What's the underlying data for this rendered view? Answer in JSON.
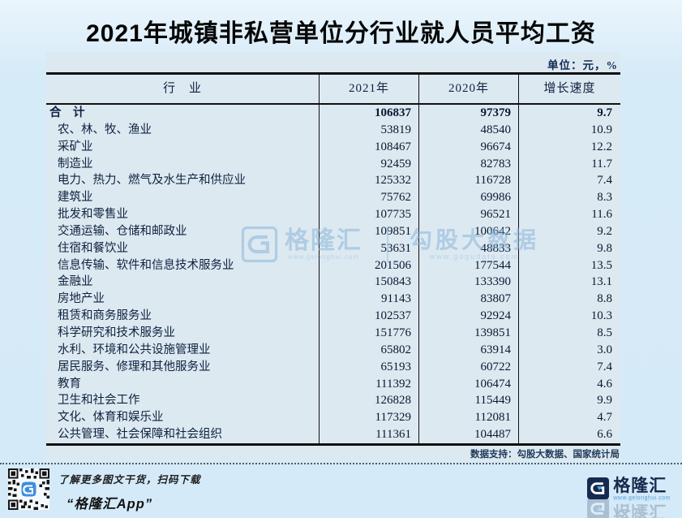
{
  "page": {
    "title": "2021年城镇非私营单位分行业就人员平均工资"
  },
  "table": {
    "unit_note": "单位：元，%",
    "source_note": "数据支持：勾股大数据、国家统计局"
  },
  "chart_data": {
    "type": "table",
    "title": "2021年城镇非私营单位分行业就人员平均工资",
    "unit": "元, %",
    "columns": [
      "行　业",
      "2021年",
      "2020年",
      "增长速度"
    ],
    "rows": [
      {
        "industry": "合　计",
        "y2021": 106837,
        "y2020": 97379,
        "growth": "9.7"
      },
      {
        "industry": "农、林、牧、渔业",
        "y2021": 53819,
        "y2020": 48540,
        "growth": "10.9"
      },
      {
        "industry": "采矿业",
        "y2021": 108467,
        "y2020": 96674,
        "growth": "12.2"
      },
      {
        "industry": "制造业",
        "y2021": 92459,
        "y2020": 82783,
        "growth": "11.7"
      },
      {
        "industry": "电力、热力、燃气及水生产和供应业",
        "y2021": 125332,
        "y2020": 116728,
        "growth": "7.4"
      },
      {
        "industry": "建筑业",
        "y2021": 75762,
        "y2020": 69986,
        "growth": "8.3"
      },
      {
        "industry": "批发和零售业",
        "y2021": 107735,
        "y2020": 96521,
        "growth": "11.6"
      },
      {
        "industry": "交通运输、仓储和邮政业",
        "y2021": 109851,
        "y2020": 100642,
        "growth": "9.2"
      },
      {
        "industry": "住宿和餐饮业",
        "y2021": 53631,
        "y2020": 48833,
        "growth": "9.8"
      },
      {
        "industry": "信息传输、软件和信息技术服务业",
        "y2021": 201506,
        "y2020": 177544,
        "growth": "13.5"
      },
      {
        "industry": "金融业",
        "y2021": 150843,
        "y2020": 133390,
        "growth": "13.1"
      },
      {
        "industry": "房地产业",
        "y2021": 91143,
        "y2020": 83807,
        "growth": "8.8"
      },
      {
        "industry": "租赁和商务服务业",
        "y2021": 102537,
        "y2020": 92924,
        "growth": "10.3"
      },
      {
        "industry": "科学研究和技术服务业",
        "y2021": 151776,
        "y2020": 139851,
        "growth": "8.5"
      },
      {
        "industry": "水利、环境和公共设施管理业",
        "y2021": 65802,
        "y2020": 63914,
        "growth": "3.0"
      },
      {
        "industry": "居民服务、修理和其他服务业",
        "y2021": 65193,
        "y2020": 60722,
        "growth": "7.4"
      },
      {
        "industry": "教育",
        "y2021": 111392,
        "y2020": 106474,
        "growth": "4.6"
      },
      {
        "industry": "卫生和社会工作",
        "y2021": 126828,
        "y2020": 115449,
        "growth": "9.9"
      },
      {
        "industry": "文化、体育和娱乐业",
        "y2021": 117329,
        "y2020": 112081,
        "growth": "4.7"
      },
      {
        "industry": "公共管理、社会保障和社会组织",
        "y2021": 111361,
        "y2020": 104487,
        "growth": "6.6"
      }
    ]
  },
  "watermark": {
    "brand": "格隆汇",
    "brand_url": "www.gelonghui.com",
    "partner": "勾股大数据",
    "partner_url": "www.gogudata.com"
  },
  "footer": {
    "promo_line": "了解更多图文干货，扫码下载",
    "app_name": "“格隆汇App”",
    "logo_text": "格隆汇",
    "logo_url": "www.gelonghui.com"
  },
  "colors": {
    "page_bg": "#d6ebf8",
    "panel_bg": "#dde9f1",
    "border": "#101010",
    "text": "#0e2240",
    "watermark": "#8ab6da",
    "logo_navy": "#152a4e",
    "logo_blue": "#4da0e0"
  }
}
